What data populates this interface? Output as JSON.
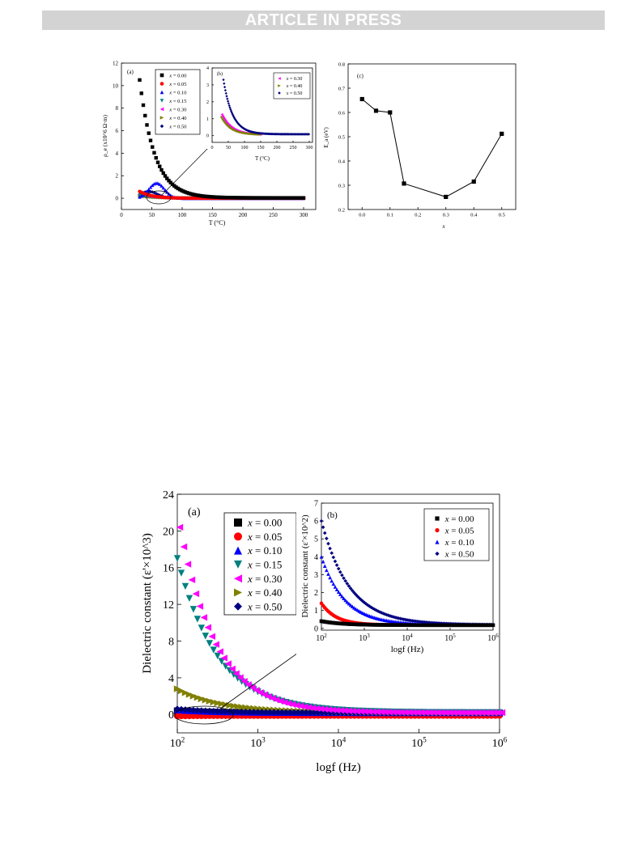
{
  "header": {
    "banner": "ARTICLE IN PRESS"
  },
  "figure_top": {
    "panel_a": {
      "label": "(a)",
      "xlabel": "T (°C)",
      "ylabel": "ρ_e (x10^6 Ω·m)",
      "xticks": [
        "0",
        "50",
        "100",
        "150",
        "200",
        "250",
        "300"
      ],
      "yticks": [
        "0",
        "2",
        "4",
        "6",
        "8",
        "10",
        "12"
      ],
      "legend": [
        "x = 0.00",
        "x = 0.05",
        "x = 0.10",
        "x = 0.15",
        "x = 0.30",
        "x = 0.40",
        "x = 0.50"
      ],
      "inset": {
        "label": "(b)",
        "xlabel": "T (°C)",
        "xticks": [
          "0",
          "50",
          "100",
          "150",
          "200",
          "250",
          "300"
        ],
        "yticks": [
          "0",
          "1",
          "2",
          "3",
          "4"
        ],
        "legend": [
          "x = 0.30",
          "x = 0.40",
          "x = 0.50"
        ]
      }
    },
    "panel_c": {
      "label": "(c)",
      "xlabel": "x",
      "ylabel": "E_a (eV)",
      "xticks": [
        "0.0",
        "0.1",
        "0.2",
        "0.3",
        "0.4",
        "0.5"
      ],
      "yticks": [
        "0.2",
        "0.3",
        "0.4",
        "0.5",
        "0.6",
        "0.7",
        "0.8"
      ]
    }
  },
  "figure_bottom": {
    "panel_a": {
      "label": "(a)",
      "xlabel": "logf (Hz)",
      "ylabel": "Dielectric constant (ε'×10^3)",
      "xticks": [
        "10^2",
        "10^3",
        "10^4",
        "10^5",
        "10^6"
      ],
      "yticks": [
        "0",
        "4",
        "8",
        "12",
        "16",
        "20",
        "24"
      ],
      "legend": [
        "x = 0.00",
        "x = 0.05",
        "x = 0.10",
        "x = 0.15",
        "x = 0.30",
        "x = 0.40",
        "x = 0.50"
      ],
      "inset": {
        "label": "(b)",
        "xlabel": "logf (Hz)",
        "ylabel": "Dielectric constant (ε'×10^2)",
        "xticks": [
          "10^2",
          "10^3",
          "10^4",
          "10^5",
          "10^6"
        ],
        "yticks": [
          "0",
          "1",
          "2",
          "3",
          "4",
          "5",
          "6",
          "7"
        ],
        "legend": [
          "x = 0.00",
          "x = 0.05",
          "x = 0.10",
          "x = 0.50"
        ]
      }
    }
  },
  "colors": {
    "x000": "#000000",
    "x005": "#ff0000",
    "x010": "#0000ff",
    "x015": "#008080",
    "x030": "#ff00ff",
    "x040": "#808000",
    "x050": "#000080"
  },
  "chart_data": [
    {
      "type": "scatter",
      "panel": "top (a)",
      "x_range": [
        0,
        320
      ],
      "ylim": [
        -1,
        12
      ],
      "series": [
        {
          "name": "x = 0.00",
          "curve": "decay",
          "t_start": 30,
          "t_end": 300,
          "y0": 10.5,
          "y_inf": 0.03,
          "tau": 25
        },
        {
          "name": "x = 0.05",
          "curve": "decay",
          "t_start": 30,
          "t_end": 300,
          "y0": 0.6,
          "y_inf": 0.0,
          "tau": 20
        },
        {
          "name": "x = 0.10",
          "curve": "peak",
          "t_start": 30,
          "t_end": 300,
          "peak_x": 58,
          "peak_y": 1.35,
          "width": 18
        },
        {
          "name": "x = 0.15",
          "curve": "decay",
          "t_start": 30,
          "t_end": 300,
          "y0": 0.25,
          "y_inf": 0.0,
          "tau": 25
        },
        {
          "name": "x = 0.30",
          "curve": "decay",
          "t_start": 30,
          "t_end": 300,
          "y0": 0.3,
          "y_inf": 0.0,
          "tau": 25
        },
        {
          "name": "x = 0.40",
          "curve": "decay",
          "t_start": 30,
          "t_end": 300,
          "y0": 0.2,
          "y_inf": 0.0,
          "tau": 25
        },
        {
          "name": "x = 0.50",
          "curve": "peak",
          "t_start": 30,
          "t_end": 300,
          "peak_x": 45,
          "peak_y": 0.6,
          "width": 20
        }
      ]
    },
    {
      "type": "scatter",
      "panel": "top inset (b)",
      "x_range": [
        0,
        310
      ],
      "ylim": [
        -0.4,
        4
      ],
      "series": [
        {
          "name": "x = 0.30",
          "curve": "decay",
          "t_start": 30,
          "t_end": 150,
          "y0": 1.25,
          "y_inf": 0.05,
          "tau": 30
        },
        {
          "name": "x = 0.40",
          "curve": "decay",
          "t_start": 30,
          "t_end": 150,
          "y0": 1.1,
          "y_inf": 0.05,
          "tau": 30
        },
        {
          "name": "x = 0.50",
          "curve": "decay",
          "t_start": 35,
          "t_end": 300,
          "y0": 3.3,
          "y_inf": 0.08,
          "tau": 28
        }
      ]
    },
    {
      "type": "line",
      "panel": "top (c)",
      "x": [
        0.0,
        0.05,
        0.1,
        0.15,
        0.3,
        0.4,
        0.5
      ],
      "y": [
        0.655,
        0.607,
        0.6,
        0.307,
        0.252,
        0.315,
        0.512
      ],
      "xlim": [
        -0.05,
        0.55
      ],
      "ylim": [
        0.2,
        0.8
      ]
    },
    {
      "type": "scatter",
      "panel": "bottom (a)",
      "x_log_range": [
        2,
        6
      ],
      "ylim": [
        -2,
        24
      ],
      "series": [
        {
          "name": "x = 0.00",
          "y_at_100Hz": 0.4,
          "y_inf": 0.15,
          "decades_tau": 0.5
        },
        {
          "name": "x = 0.05",
          "y_at_100Hz": -0.15,
          "y_inf": -0.1,
          "decades_tau": 0.5
        },
        {
          "name": "x = 0.10",
          "y_at_100Hz": 0.5,
          "y_inf": 0.2,
          "decades_tau": 0.5
        },
        {
          "name": "x = 0.15",
          "y_at_100Hz": 17,
          "y_inf": 0.2,
          "decades_tau": 0.5
        },
        {
          "name": "x = 0.30",
          "y_at_100Hz": 20.4,
          "y_inf": 0.2,
          "decades_tau": 0.45
        },
        {
          "name": "x = 0.40",
          "y_at_100Hz": 2.8,
          "y_inf": 0.2,
          "decades_tau": 0.55
        },
        {
          "name": "x = 0.50",
          "y_at_100Hz": 0.6,
          "y_inf": 0.2,
          "decades_tau": 0.5
        }
      ]
    },
    {
      "type": "scatter",
      "panel": "bottom inset (b)",
      "x_log_range": [
        2,
        6
      ],
      "ylim": [
        -0.1,
        7
      ],
      "series": [
        {
          "name": "x = 0.00",
          "y_at_100Hz": 0.4,
          "y_inf": 0.18,
          "decades_tau": 0.5
        },
        {
          "name": "x = 0.05",
          "y_at_100Hz": 1.4,
          "y_inf": 0.18,
          "decades_tau": 0.35
        },
        {
          "name": "x = 0.10",
          "y_at_100Hz": 4.0,
          "y_inf": 0.2,
          "decades_tau": 0.55
        },
        {
          "name": "x = 0.50",
          "y_at_100Hz": 6.0,
          "y_inf": 0.2,
          "decades_tau": 0.65
        }
      ]
    }
  ]
}
